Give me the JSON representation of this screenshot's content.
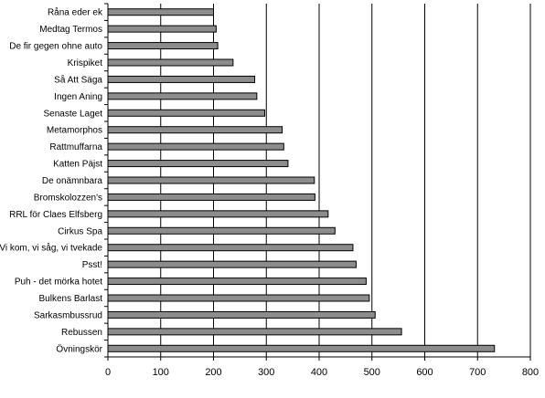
{
  "chart_data": {
    "type": "bar",
    "orientation": "horizontal",
    "categories": [
      "Råna eder ek",
      "Medtag Termos",
      "De fir gegen ohne auto",
      "Krispiket",
      "Så Att Säga",
      "Ingen Aning",
      "Senaste Laget",
      "Metamorphos",
      "Rattmuffarna",
      "Katten Päjst",
      "De onämnbara",
      "Bromskolozzen's",
      "RRL för Claes Elfsberg",
      "Cirkus Spa",
      "Vi kom, vi såg, vi tvekade",
      "Psst!",
      "Puh - det mörka hotet",
      "Bulkens Barlast",
      "Sarkasmbussrud",
      "Rebussen",
      "Övningskör"
    ],
    "values": [
      200,
      205,
      208,
      237,
      278,
      282,
      297,
      330,
      333,
      341,
      391,
      392,
      417,
      430,
      464,
      470,
      489,
      495,
      506,
      556,
      732
    ],
    "xlim": [
      0,
      800
    ],
    "xticks": [
      "0",
      "100",
      "200",
      "300",
      "400",
      "500",
      "600",
      "700",
      "800"
    ],
    "grid": "vertical",
    "legend": "none",
    "title": "",
    "xlabel": "",
    "ylabel": "",
    "colors": {
      "bar_fill": "#8c8c8c",
      "bar_stroke": "#000000",
      "grid": "#000000",
      "axis": "#000000"
    }
  }
}
